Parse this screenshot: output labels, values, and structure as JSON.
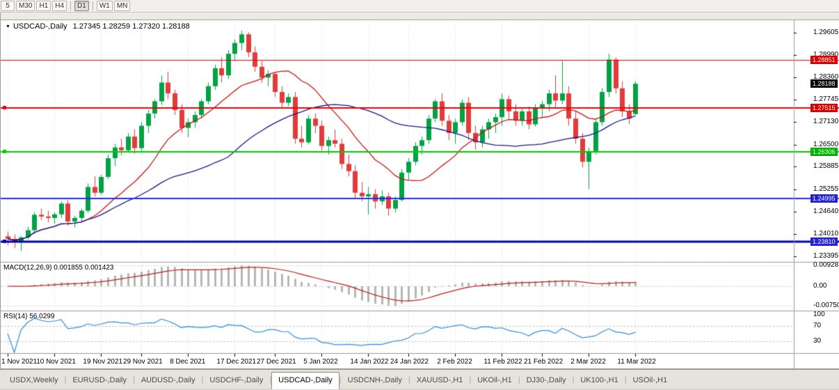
{
  "toolbar": {
    "periods": [
      {
        "label": "5",
        "active": false,
        "sep_before": false
      },
      {
        "label": "M30",
        "active": false,
        "sep_before": false
      },
      {
        "label": "H1",
        "active": false,
        "sep_before": false
      },
      {
        "label": "H4",
        "active": false,
        "sep_before": false
      },
      {
        "label": "D1",
        "active": true,
        "sep_before": true
      },
      {
        "label": "W1",
        "active": false,
        "sep_before": true
      },
      {
        "label": "MN",
        "active": false,
        "sep_before": false
      }
    ]
  },
  "chart": {
    "symbol": "USDCAD-,Daily",
    "ohlc": "1.27345 1.28259 1.27320 1.28188"
  },
  "indicators": {
    "macd_label": "MACD(12,26,9) 0.001855 0.001423",
    "rsi_label": "RSI(14) 56.0299"
  },
  "colors": {
    "candle_up": "#00a344",
    "candle_down": "#e23b3b",
    "ma_fast": "#cc1111",
    "ma_slow": "#16168c",
    "macd_hist": "#b6b6b6",
    "macd_signal": "#c01818",
    "rsi_line": "#2f8de4",
    "grid": "#dcdcdc"
  },
  "chart_data": {
    "type": "candlestick",
    "title": "USDCAD-,Daily",
    "price_axis": {
      "max": 1.29605,
      "min": 1.23395,
      "ticks": [
        "1.29605",
        "1.28990",
        "1.28360",
        "1.27745",
        "1.27130",
        "1.26500",
        "1.25885",
        "1.25255",
        "1.24640",
        "1.24010",
        "1.23395"
      ]
    },
    "price_tags": [
      {
        "value": "1.28851",
        "color": "#dd0000"
      },
      {
        "value": "1.28188",
        "color": "#000000"
      },
      {
        "value": "1.27515",
        "color": "#dd0000"
      },
      {
        "value": "1.26306",
        "color": "#00b400"
      },
      {
        "value": "1.24995",
        "color": "#2222dd"
      },
      {
        "value": "1.23810",
        "color": "#2222dd"
      }
    ],
    "hlines": [
      {
        "price": 1.28851,
        "color": "#ee0000",
        "width": 1,
        "marker": false
      },
      {
        "price": 1.27515,
        "color": "#ee0000",
        "width": 2,
        "marker": true
      },
      {
        "price": 1.26306,
        "color": "#00cc00",
        "width": 2,
        "marker": true
      },
      {
        "price": 1.24995,
        "color": "#2a2ae6",
        "width": 2,
        "marker": false
      },
      {
        "price": 1.2381,
        "color": "#0000bb",
        "width": 3,
        "marker": true
      }
    ],
    "moving_averages": [
      {
        "period": 13,
        "color": "#cc1111"
      },
      {
        "period": 34,
        "color": "#16168c"
      }
    ],
    "macd": {
      "fast": 12,
      "slow": 26,
      "signal": 9,
      "scale": [
        {
          "label": "0.00928",
          "v": 0.00928
        },
        {
          "label": "0.00",
          "v": 0
        },
        {
          "label": "-0.00750",
          "v": -0.0075
        }
      ]
    },
    "rsi": {
      "period": 14,
      "scale": [
        "100",
        "70",
        "30"
      ]
    },
    "date_ticks": [
      {
        "i": 0,
        "label": "1 Nov 2021"
      },
      {
        "i": 7,
        "label": "10 Nov 2021"
      },
      {
        "i": 14,
        "label": "19 Nov 2021"
      },
      {
        "i": 20,
        "label": "29 Nov 2021"
      },
      {
        "i": 27,
        "label": "8 Dec 2021"
      },
      {
        "i": 34,
        "label": "17 Dec 2021"
      },
      {
        "i": 40,
        "label": "27 Dec 2021"
      },
      {
        "i": 47,
        "label": "5 Jan 2022"
      },
      {
        "i": 54,
        "label": "14 Jan 2022"
      },
      {
        "i": 60,
        "label": "24 Jan 2022"
      },
      {
        "i": 67,
        "label": "2 Feb 2022"
      },
      {
        "i": 74,
        "label": "11 Feb 2022"
      },
      {
        "i": 80,
        "label": "21 Feb 2022"
      },
      {
        "i": 87,
        "label": "2 Mar 2022"
      },
      {
        "i": 94,
        "label": "11 Mar 2022"
      }
    ],
    "candles": [
      [
        1.2395,
        1.2408,
        1.237,
        1.2388
      ],
      [
        1.2388,
        1.24,
        1.2362,
        1.238
      ],
      [
        1.238,
        1.2396,
        1.2355,
        1.2392
      ],
      [
        1.2392,
        1.2422,
        1.2386,
        1.2412
      ],
      [
        1.2412,
        1.2462,
        1.2402,
        1.2455
      ],
      [
        1.2455,
        1.2472,
        1.244,
        1.245
      ],
      [
        1.245,
        1.2466,
        1.2434,
        1.2446
      ],
      [
        1.2446,
        1.2462,
        1.243,
        1.2456
      ],
      [
        1.2456,
        1.2492,
        1.2446,
        1.2486
      ],
      [
        1.2486,
        1.2496,
        1.2424,
        1.2436
      ],
      [
        1.2436,
        1.2452,
        1.242,
        1.2446
      ],
      [
        1.2446,
        1.2472,
        1.2436,
        1.2466
      ],
      [
        1.2466,
        1.2542,
        1.246,
        1.2532
      ],
      [
        1.2532,
        1.2562,
        1.2506,
        1.2516
      ],
      [
        1.2516,
        1.2566,
        1.251,
        1.256
      ],
      [
        1.256,
        1.2622,
        1.2554,
        1.2612
      ],
      [
        1.2612,
        1.2652,
        1.259,
        1.2642
      ],
      [
        1.2642,
        1.2666,
        1.262,
        1.2634
      ],
      [
        1.2634,
        1.2682,
        1.2628,
        1.2672
      ],
      [
        1.2672,
        1.2692,
        1.2624,
        1.264
      ],
      [
        1.264,
        1.2712,
        1.2632,
        1.2702
      ],
      [
        1.2702,
        1.2746,
        1.2682,
        1.2736
      ],
      [
        1.2736,
        1.2776,
        1.2722,
        1.277
      ],
      [
        1.277,
        1.2842,
        1.276,
        1.2822
      ],
      [
        1.2822,
        1.2852,
        1.2776,
        1.2792
      ],
      [
        1.2792,
        1.2802,
        1.2732,
        1.2746
      ],
      [
        1.2746,
        1.2762,
        1.2682,
        1.2696
      ],
      [
        1.2696,
        1.2722,
        1.267,
        1.2712
      ],
      [
        1.2712,
        1.2742,
        1.2696,
        1.2732
      ],
      [
        1.2732,
        1.2776,
        1.2722,
        1.277
      ],
      [
        1.277,
        1.2822,
        1.2762,
        1.2812
      ],
      [
        1.2812,
        1.2872,
        1.2802,
        1.2862
      ],
      [
        1.2862,
        1.2892,
        1.2822,
        1.2842
      ],
      [
        1.2842,
        1.2912,
        1.2832,
        1.2902
      ],
      [
        1.2902,
        1.2942,
        1.2882,
        1.2932
      ],
      [
        1.2932,
        1.2966,
        1.2912,
        1.2956
      ],
      [
        1.2956,
        1.2962,
        1.2892,
        1.2906
      ],
      [
        1.2906,
        1.2922,
        1.2852,
        1.2866
      ],
      [
        1.2866,
        1.2882,
        1.2822,
        1.2836
      ],
      [
        1.2836,
        1.2856,
        1.2812,
        1.2846
      ],
      [
        1.2846,
        1.2852,
        1.2782,
        1.2796
      ],
      [
        1.2796,
        1.2812,
        1.2752,
        1.2766
      ],
      [
        1.2766,
        1.2792,
        1.2756,
        1.2782
      ],
      [
        1.2782,
        1.2796,
        1.2652,
        1.2666
      ],
      [
        1.2666,
        1.2702,
        1.2642,
        1.2656
      ],
      [
        1.2656,
        1.2732,
        1.265,
        1.2722
      ],
      [
        1.2722,
        1.2736,
        1.2682,
        1.2702
      ],
      [
        1.2702,
        1.2716,
        1.2632,
        1.2646
      ],
      [
        1.2646,
        1.2672,
        1.2622,
        1.2662
      ],
      [
        1.2662,
        1.2692,
        1.2642,
        1.2652
      ],
      [
        1.2652,
        1.2666,
        1.2582,
        1.2596
      ],
      [
        1.2596,
        1.2622,
        1.2562,
        1.2576
      ],
      [
        1.2576,
        1.2592,
        1.2502,
        1.2516
      ],
      [
        1.2516,
        1.2546,
        1.2492,
        1.2506
      ],
      [
        1.2506,
        1.2532,
        1.2456,
        1.2512
      ],
      [
        1.2512,
        1.2526,
        1.2472,
        1.2492
      ],
      [
        1.2492,
        1.2522,
        1.2482,
        1.2506
      ],
      [
        1.2506,
        1.2516,
        1.2452,
        1.2472
      ],
      [
        1.2472,
        1.2506,
        1.2462,
        1.2496
      ],
      [
        1.2496,
        1.2582,
        1.2492,
        1.2572
      ],
      [
        1.2572,
        1.2612,
        1.2552,
        1.2602
      ],
      [
        1.2602,
        1.2656,
        1.2592,
        1.2646
      ],
      [
        1.2646,
        1.2672,
        1.2622,
        1.2662
      ],
      [
        1.2662,
        1.2732,
        1.2652,
        1.2722
      ],
      [
        1.2722,
        1.2776,
        1.2712,
        1.277
      ],
      [
        1.277,
        1.2792,
        1.2702,
        1.2716
      ],
      [
        1.2716,
        1.2732,
        1.2662,
        1.2682
      ],
      [
        1.2682,
        1.2722,
        1.2652,
        1.2712
      ],
      [
        1.2712,
        1.2776,
        1.2702,
        1.2766
      ],
      [
        1.2766,
        1.2782,
        1.2662,
        1.2682
      ],
      [
        1.2682,
        1.2702,
        1.2636,
        1.2656
      ],
      [
        1.2656,
        1.2702,
        1.2642,
        1.2692
      ],
      [
        1.2692,
        1.2722,
        1.2666,
        1.2712
      ],
      [
        1.2712,
        1.2736,
        1.2682,
        1.2726
      ],
      [
        1.2726,
        1.2792,
        1.2702,
        1.2776
      ],
      [
        1.2776,
        1.2786,
        1.2722,
        1.2742
      ],
      [
        1.2742,
        1.2762,
        1.2702,
        1.2716
      ],
      [
        1.2716,
        1.2752,
        1.2702,
        1.2742
      ],
      [
        1.2742,
        1.2756,
        1.2692,
        1.2706
      ],
      [
        1.2706,
        1.2762,
        1.27,
        1.2752
      ],
      [
        1.2752,
        1.2772,
        1.2722,
        1.2762
      ],
      [
        1.2762,
        1.2802,
        1.2742,
        1.2792
      ],
      [
        1.2792,
        1.2842,
        1.2752,
        1.2772
      ],
      [
        1.2772,
        1.2882,
        1.2762,
        1.2792
      ],
      [
        1.2792,
        1.2812,
        1.2702,
        1.2722
      ],
      [
        1.2722,
        1.2742,
        1.2652,
        1.2666
      ],
      [
        1.2666,
        1.2682,
        1.2586,
        1.2602
      ],
      [
        1.2602,
        1.2642,
        1.2526,
        1.2632
      ],
      [
        1.2632,
        1.2722,
        1.2622,
        1.2712
      ],
      [
        1.2712,
        1.2806,
        1.2702,
        1.2796
      ],
      [
        1.2796,
        1.2902,
        1.2782,
        1.2886
      ],
      [
        1.2886,
        1.2892,
        1.2792,
        1.2806
      ],
      [
        1.2806,
        1.2826,
        1.2726,
        1.2742
      ],
      [
        1.2742,
        1.2762,
        1.2706,
        1.2722
      ],
      [
        1.27345,
        1.28259,
        1.2732,
        1.28188
      ]
    ]
  },
  "tabs": [
    {
      "label": "USDX,Weekly",
      "active": false
    },
    {
      "label": "EURUSD-,Daily",
      "active": false
    },
    {
      "label": "AUDUSD-,Daily",
      "active": false
    },
    {
      "label": "USDCHF-,Daily",
      "active": false
    },
    {
      "label": "USDCAD-,Daily",
      "active": true
    },
    {
      "label": "USDCNH-,Daily",
      "active": false
    },
    {
      "label": "XAUUSD-,H1",
      "active": false
    },
    {
      "label": "UKOil-,H1",
      "active": false
    },
    {
      "label": "DJ30-,Daily",
      "active": false
    },
    {
      "label": "UK100-,H1",
      "active": false
    },
    {
      "label": "USOil-,H1",
      "active": false
    }
  ]
}
